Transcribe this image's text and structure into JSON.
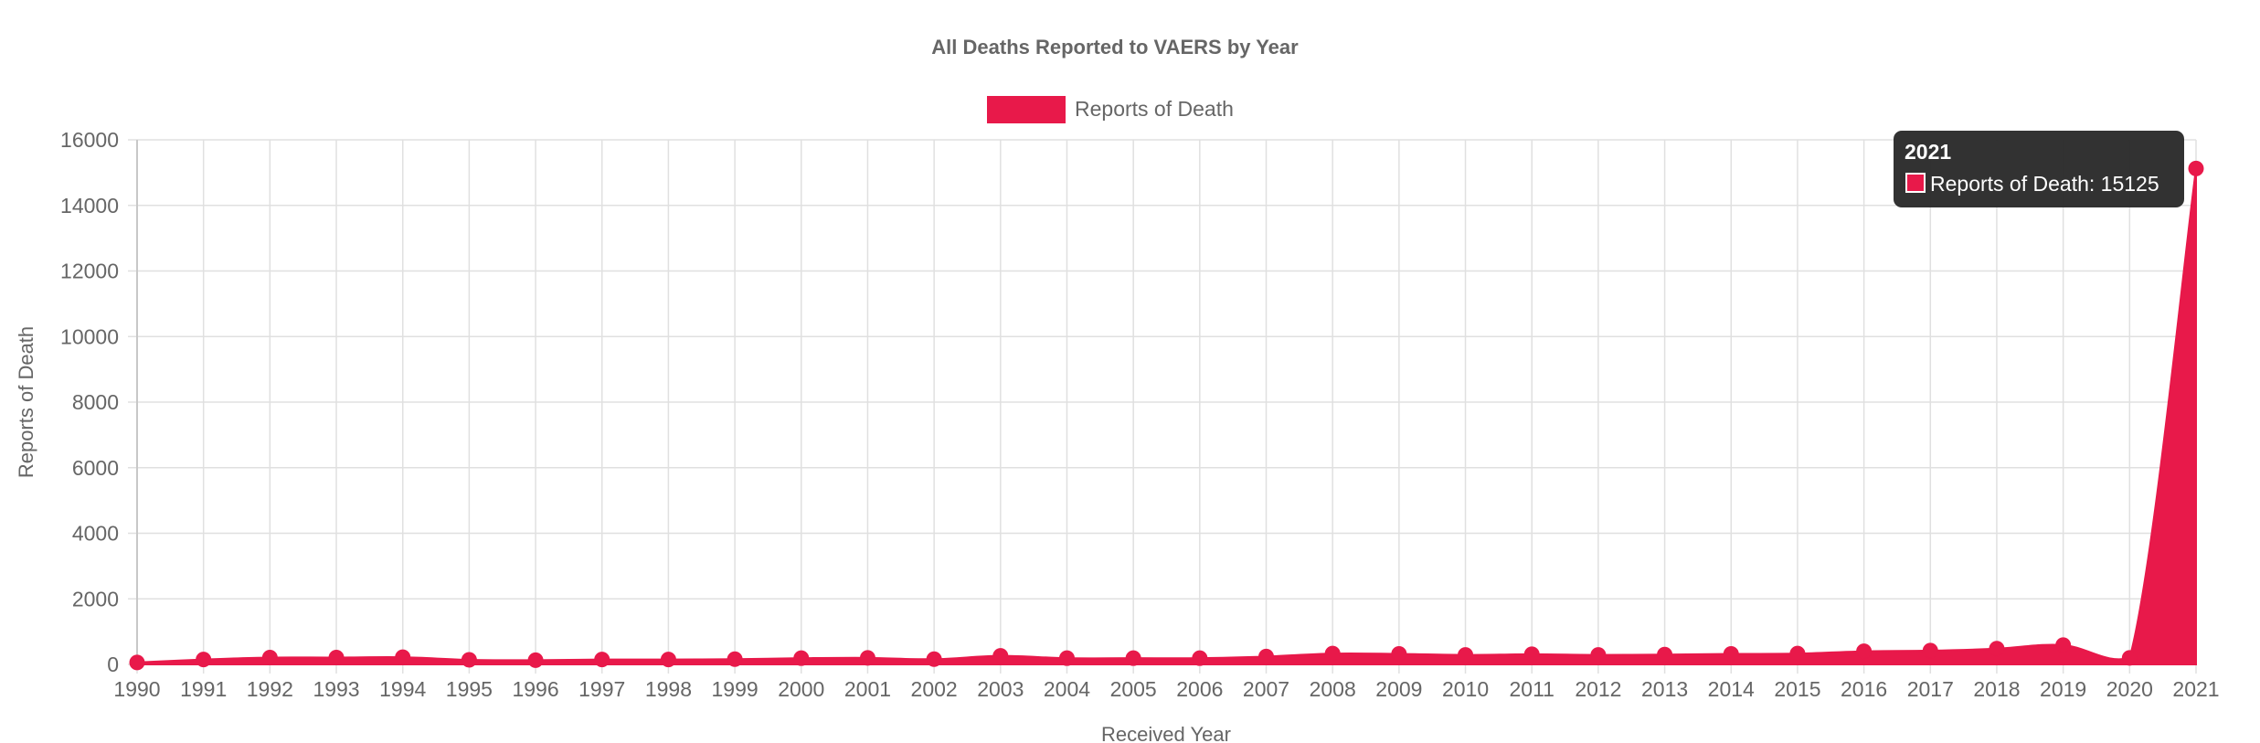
{
  "chart_data": {
    "type": "area",
    "title": "All Deaths Reported to VAERS by Year",
    "xlabel": "Received Year",
    "ylabel": "Reports of Death",
    "ylim": [
      0,
      16000
    ],
    "yticks": [
      "0",
      "2000",
      "4000",
      "6000",
      "8000",
      "10000",
      "12000",
      "14000",
      "16000"
    ],
    "grid": true,
    "legend_position": "top",
    "categories": [
      "1990",
      "1991",
      "1992",
      "1993",
      "1994",
      "1995",
      "1996",
      "1997",
      "1998",
      "1999",
      "2000",
      "2001",
      "2002",
      "2003",
      "2004",
      "2005",
      "2006",
      "2007",
      "2008",
      "2009",
      "2010",
      "2011",
      "2012",
      "2013",
      "2014",
      "2015",
      "2016",
      "2017",
      "2018",
      "2019",
      "2020",
      "2021"
    ],
    "series": [
      {
        "name": "Reports of Death",
        "color": "#e8194a",
        "values": [
          60,
          150,
          210,
          210,
          220,
          140,
          130,
          150,
          150,
          160,
          190,
          200,
          160,
          260,
          190,
          190,
          190,
          240,
          330,
          320,
          290,
          310,
          290,
          300,
          320,
          330,
          400,
          420,
          480,
          590,
          200,
          15125
        ]
      }
    ],
    "tooltip": {
      "title": "2021",
      "label": "Reports of Death: 15125"
    }
  }
}
